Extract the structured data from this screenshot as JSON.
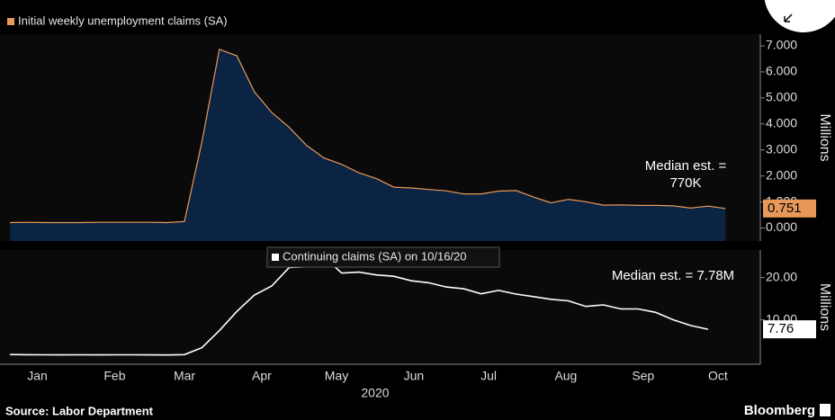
{
  "chart_data": [
    {
      "type": "area",
      "series": [
        {
          "name": "Initial weekly unemployment claims (SA)",
          "color": "#e8995a",
          "fill": "#0b2444",
          "values": [
            0.21,
            0.22,
            0.21,
            0.21,
            0.21,
            0.22,
            0.22,
            0.22,
            0.22,
            0.21,
            0.25,
            3.31,
            6.87,
            6.62,
            5.24,
            4.44,
            3.87,
            3.17,
            2.69,
            2.45,
            2.12,
            1.9,
            1.57,
            1.54,
            1.48,
            1.43,
            1.31,
            1.31,
            1.42,
            1.44,
            1.19,
            0.97,
            1.1,
            1.01,
            0.88,
            0.89,
            0.87,
            0.87,
            0.85,
            0.77,
            0.84,
            0.751
          ]
        }
      ],
      "x": [
        4,
        11,
        18,
        25,
        32,
        39,
        46,
        53,
        60,
        67,
        74,
        81,
        88,
        95,
        102,
        109,
        116,
        123,
        130,
        137,
        144,
        151,
        158,
        165,
        172,
        179,
        186,
        193,
        200,
        207,
        214,
        221,
        228,
        235,
        242,
        249,
        256,
        263,
        270,
        277,
        284,
        291
      ],
      "xlim": [
        0,
        305
      ],
      "ylim": [
        -0.5,
        7.45
      ],
      "yticks": [
        {
          "value": 0,
          "label": "0.000"
        },
        {
          "value": 1,
          "label": "1.000"
        },
        {
          "value": 2,
          "label": "2.000"
        },
        {
          "value": 3,
          "label": "3.000"
        },
        {
          "value": 4,
          "label": "4.000"
        },
        {
          "value": 5,
          "label": "5.000"
        },
        {
          "value": 6,
          "label": "6.000"
        },
        {
          "value": 7,
          "label": "7.000"
        }
      ],
      "ylabel": "Millions",
      "annotation": [
        "Median est. =",
        "770K"
      ],
      "legend": "top-left"
    },
    {
      "type": "line",
      "series": [
        {
          "name": "Continuing claims (SA) on 10/16/20",
          "color": "#ffffff",
          "values": [
            1.8,
            1.75,
            1.73,
            1.72,
            1.74,
            1.72,
            1.73,
            1.73,
            1.72,
            1.7,
            1.78,
            3.41,
            7.45,
            11.98,
            15.82,
            17.99,
            22.38,
            22.55,
            24.91,
            21.05,
            21.27,
            20.61,
            20.29,
            19.23,
            18.76,
            17.76,
            17.34,
            16.15,
            16.95,
            16.09,
            15.49,
            14.84,
            14.49,
            13.18,
            13.54,
            12.58,
            12.58,
            11.77,
            10.02,
            8.66,
            7.76
          ]
        }
      ],
      "x": [
        4,
        11,
        18,
        25,
        32,
        39,
        46,
        53,
        60,
        67,
        74,
        81,
        88,
        95,
        102,
        109,
        116,
        123,
        130,
        137,
        144,
        151,
        158,
        165,
        172,
        179,
        186,
        193,
        200,
        207,
        214,
        221,
        228,
        235,
        242,
        249,
        256,
        263,
        270,
        277,
        284
      ],
      "xlim": [
        0,
        305
      ],
      "xticks": [
        {
          "value": 15,
          "label": "Jan"
        },
        {
          "value": 46,
          "label": "Feb"
        },
        {
          "value": 74,
          "label": "Mar"
        },
        {
          "value": 105,
          "label": "Apr"
        },
        {
          "value": 135,
          "label": "May"
        },
        {
          "value": 166,
          "label": "Jun"
        },
        {
          "value": 196,
          "label": "Jul"
        },
        {
          "value": 227,
          "label": "Aug"
        },
        {
          "value": 258,
          "label": "Sep"
        },
        {
          "value": 288,
          "label": "Oct"
        }
      ],
      "xlabel": "2020",
      "ylim": [
        -0.5,
        26.5
      ],
      "yticks": [
        {
          "value": 10,
          "label": "10.00"
        },
        {
          "value": 20,
          "label": "20.00"
        }
      ],
      "ylabel": "Millions",
      "annotation": [
        "Median est. = 7.78M"
      ],
      "legend": "top-center"
    }
  ],
  "footer": {
    "source": "Source: Labor Department",
    "brand": "Bloomberg"
  }
}
